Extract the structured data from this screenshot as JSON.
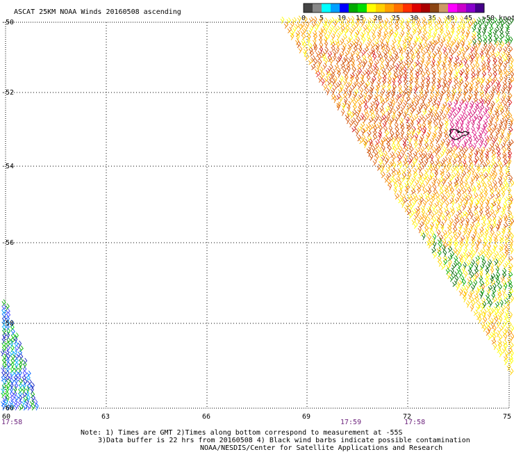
{
  "title": "ASCAT 25KM NOAA Winds 20160508 ascending",
  "legend": {
    "labels": [
      "0",
      "5",
      "10",
      "15",
      "20",
      "25",
      "30",
      "35",
      "40",
      "45",
      ">50 knots"
    ],
    "colors": [
      "#444444",
      "#888888",
      "#00ffff",
      "#00a0ff",
      "#0000ff",
      "#00aa00",
      "#00dd00",
      "#ffff00",
      "#ffd000",
      "#ffa000",
      "#ff7000",
      "#ff3000",
      "#dd0000",
      "#aa0000",
      "#8b4513",
      "#cc9966",
      "#ff00ff",
      "#cc00cc",
      "#8800cc",
      "#440088"
    ]
  },
  "map": {
    "lon_ticks": [
      "60",
      "63",
      "66",
      "69",
      "72",
      "75"
    ],
    "lat_ticks": [
      "-50",
      "-52",
      "-54",
      "-56",
      "-58",
      "-60"
    ],
    "times": [
      {
        "label": "17:58",
        "lon": 60
      },
      {
        "label": "17:59",
        "lon": 70.3
      },
      {
        "label": "17:58",
        "lon": 72.2
      }
    ]
  },
  "notes": [
    "Note: 1) Times are GMT 2)Times along bottom correspond to measurement at -55S",
    "3)Data buffer is 22 hrs from 20160508 4) Black wind barbs indicate possible contamination",
    "NOAA/NESDIS/Center for Satellite Applications and Research"
  ]
}
